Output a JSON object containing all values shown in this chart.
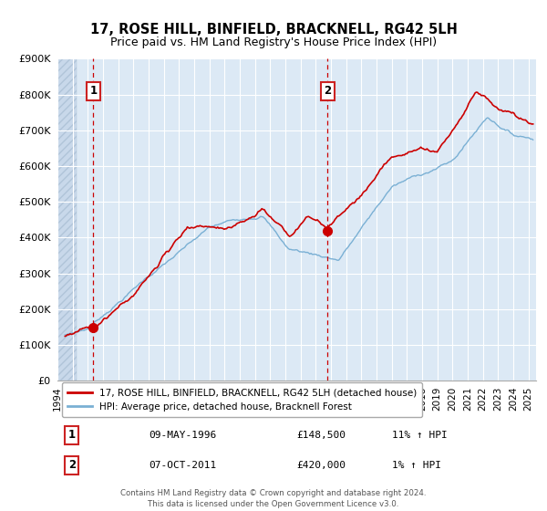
{
  "title": "17, ROSE HILL, BINFIELD, BRACKNELL, RG42 5LH",
  "subtitle": "Price paid vs. HM Land Registry's House Price Index (HPI)",
  "xlim": [
    1994.0,
    2025.5
  ],
  "ylim": [
    0,
    900000
  ],
  "yticks": [
    0,
    100000,
    200000,
    300000,
    400000,
    500000,
    600000,
    700000,
    800000,
    900000
  ],
  "ytick_labels": [
    "£0",
    "£100K",
    "£200K",
    "£300K",
    "£400K",
    "£500K",
    "£600K",
    "£700K",
    "£800K",
    "£900K"
  ],
  "xticks": [
    1994,
    1995,
    1996,
    1997,
    1998,
    1999,
    2000,
    2001,
    2002,
    2003,
    2004,
    2005,
    2006,
    2007,
    2008,
    2009,
    2010,
    2011,
    2012,
    2013,
    2014,
    2015,
    2016,
    2017,
    2018,
    2019,
    2020,
    2021,
    2022,
    2023,
    2024,
    2025
  ],
  "plot_bg": "#dce9f5",
  "hatch_bg": "#c8d8ea",
  "grid_color": "#ffffff",
  "line1_color": "#cc0000",
  "line2_color": "#7ab0d4",
  "dot1_x": 1996.36,
  "dot1_y": 148500,
  "dot2_x": 2011.77,
  "dot2_y": 420000,
  "vline1_x": 1996.36,
  "vline2_x": 2011.77,
  "data_start_x": 1995.25,
  "legend_label1": "17, ROSE HILL, BINFIELD, BRACKNELL, RG42 5LH (detached house)",
  "legend_label2": "HPI: Average price, detached house, Bracknell Forest",
  "table_row1": [
    "1",
    "09-MAY-1996",
    "£148,500",
    "11% ↑ HPI"
  ],
  "table_row2": [
    "2",
    "07-OCT-2011",
    "£420,000",
    "1% ↑ HPI"
  ],
  "footer_text": "Contains HM Land Registry data © Crown copyright and database right 2024.\nThis data is licensed under the Open Government Licence v3.0.",
  "title_fontsize": 10.5,
  "subtitle_fontsize": 9
}
